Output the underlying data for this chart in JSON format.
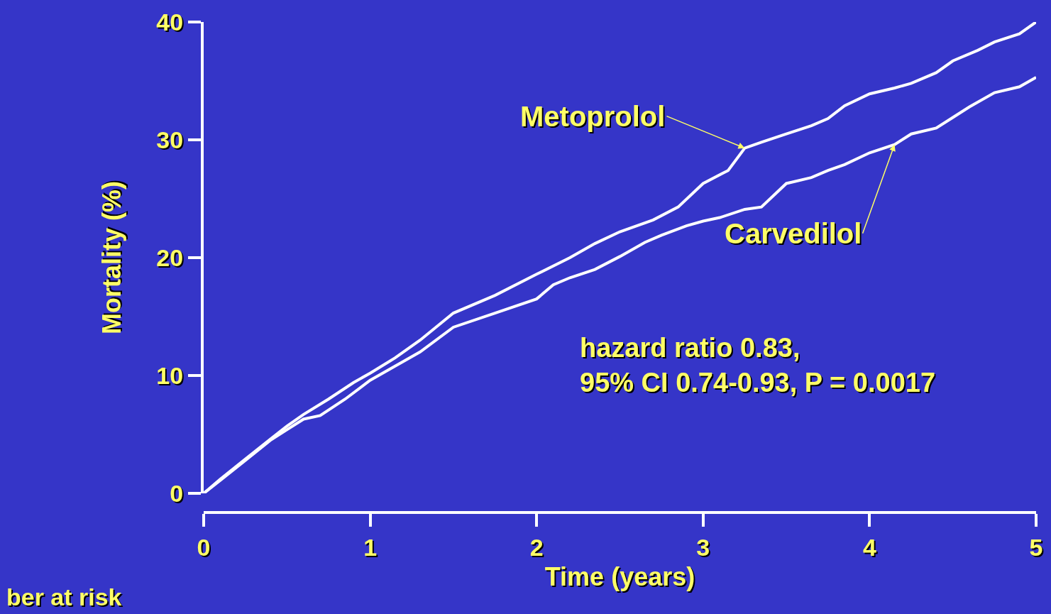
{
  "chart_data": {
    "type": "line",
    "xlabel": "Time (years)",
    "ylabel": "Mortality (%)",
    "xlim": [
      0,
      5
    ],
    "xticks": [
      0,
      1,
      2,
      3,
      4,
      5
    ],
    "ylim": [
      0,
      40
    ],
    "yticks": [
      0,
      10,
      20,
      30,
      40
    ],
    "grid": false,
    "marker": "none",
    "line_style": "solid",
    "series": [
      {
        "color": "#ffffff",
        "x": [
          0,
          0.1,
          0.25,
          0.4,
          0.5,
          0.6,
          0.75,
          0.9,
          1,
          1.15,
          1.3,
          1.5,
          1.75,
          2,
          2.2,
          2.35,
          2.5,
          2.7,
          2.85,
          3,
          3.15,
          3.25,
          3.35,
          3.5,
          3.65,
          3.75,
          3.85,
          4,
          4.15,
          4.25,
          4.4,
          4.5,
          4.65,
          4.75,
          4.9,
          5
        ],
        "values": [
          0,
          1.2,
          2.9,
          4.6,
          5.7,
          6.7,
          8.0,
          9.4,
          10.2,
          11.5,
          13.0,
          15.3,
          16.8,
          18.6,
          20.0,
          21.2,
          22.2,
          23.2,
          24.3,
          26.3,
          27.4,
          29.3,
          29.8,
          30.5,
          31.2,
          31.8,
          32.9,
          33.9,
          34.4,
          34.8,
          35.7,
          36.7,
          37.6,
          38.3,
          39.0,
          40.0
        ]
      },
      {
        "color": "#ffffff",
        "x": [
          0,
          0.1,
          0.25,
          0.4,
          0.5,
          0.6,
          0.7,
          0.85,
          1,
          1.15,
          1.3,
          1.5,
          1.75,
          2,
          2.1,
          2.2,
          2.35,
          2.5,
          2.65,
          2.75,
          2.9,
          3,
          3.1,
          3.25,
          3.35,
          3.5,
          3.65,
          3.75,
          3.85,
          4,
          4.15,
          4.25,
          4.4,
          4.5,
          4.6,
          4.75,
          4.9,
          5
        ],
        "values": [
          0,
          1.1,
          2.8,
          4.5,
          5.4,
          6.3,
          6.6,
          8.0,
          9.6,
          10.8,
          12.0,
          14.1,
          15.3,
          16.5,
          17.7,
          18.3,
          19.0,
          20.1,
          21.3,
          21.9,
          22.7,
          23.1,
          23.4,
          24.1,
          24.3,
          26.3,
          26.8,
          27.4,
          27.9,
          28.9,
          29.6,
          30.5,
          31.0,
          31.9,
          32.8,
          34.0,
          34.5,
          35.3
        ]
      }
    ],
    "annotations": [
      {
        "text": "Metoprolol",
        "x": 3.25,
        "y": 29.3
      },
      {
        "text": "Carvedilol",
        "x": 4.15,
        "y": 29.6
      },
      "hazard ratio 0.83,\n95% CI 0.74-0.93, P = 0.0017",
      "ber at risk"
    ]
  }
}
